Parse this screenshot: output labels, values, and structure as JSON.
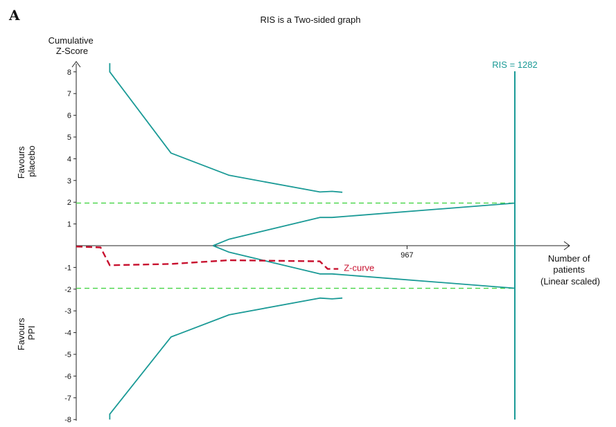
{
  "panel_label": "A",
  "chart_data": {
    "type": "line",
    "title": "RIS is a Two-sided graph",
    "ylabel": [
      "Cumulative",
      "Z-Score"
    ],
    "xlabel": [
      "Number of",
      "patients",
      "(Linear scaled)"
    ],
    "side_labels": {
      "upper": [
        "Favours",
        "placebo"
      ],
      "lower": [
        "Favours",
        "PPI"
      ]
    },
    "ylim": [
      -8,
      8
    ],
    "y_ticks": [
      8,
      7,
      6,
      5,
      4,
      3,
      2,
      1,
      -1,
      -2,
      -3,
      -4,
      -5,
      -6,
      -7,
      -8
    ],
    "xlim": [
      0,
      1282
    ],
    "x_tick": {
      "value": 967,
      "label": "967"
    },
    "ris": {
      "value": 1282,
      "label": "RIS = 1282"
    },
    "significance_boundary": 1.96,
    "colors": {
      "boundary": "#1a9a96",
      "zcurve": "#c8102e",
      "conventional": "#44d444",
      "axis": "#222222"
    },
    "series": [
      {
        "name": "Z-curve",
        "points": [
          [
            0,
            -0.04
          ],
          [
            71,
            -0.08
          ],
          [
            98,
            -0.9
          ],
          [
            277,
            -0.84
          ],
          [
            447,
            -0.67
          ],
          [
            712,
            -0.72
          ],
          [
            735,
            -1.07
          ],
          [
            766,
            -1.07
          ]
        ]
      }
    ],
    "monitoring_boundary_upper": [
      [
        98,
        8.4
      ],
      [
        98,
        8.0
      ],
      [
        277,
        4.26
      ],
      [
        447,
        3.24
      ],
      [
        712,
        2.47
      ],
      [
        748,
        2.5
      ],
      [
        778,
        2.46
      ]
    ],
    "monitoring_boundary_lower": [
      [
        98,
        -8.0
      ],
      [
        98,
        -7.75
      ],
      [
        277,
        -4.2
      ],
      [
        447,
        -3.18
      ],
      [
        712,
        -2.41
      ],
      [
        748,
        -2.45
      ],
      [
        778,
        -2.41
      ]
    ],
    "futility_upper": [
      [
        400,
        0.0
      ],
      [
        447,
        0.3
      ],
      [
        712,
        1.3
      ],
      [
        748,
        1.3
      ],
      [
        1282,
        1.96
      ]
    ],
    "futility_lower": [
      [
        400,
        0.0
      ],
      [
        447,
        -0.3
      ],
      [
        712,
        -1.3
      ],
      [
        748,
        -1.3
      ],
      [
        1282,
        -1.96
      ]
    ]
  }
}
